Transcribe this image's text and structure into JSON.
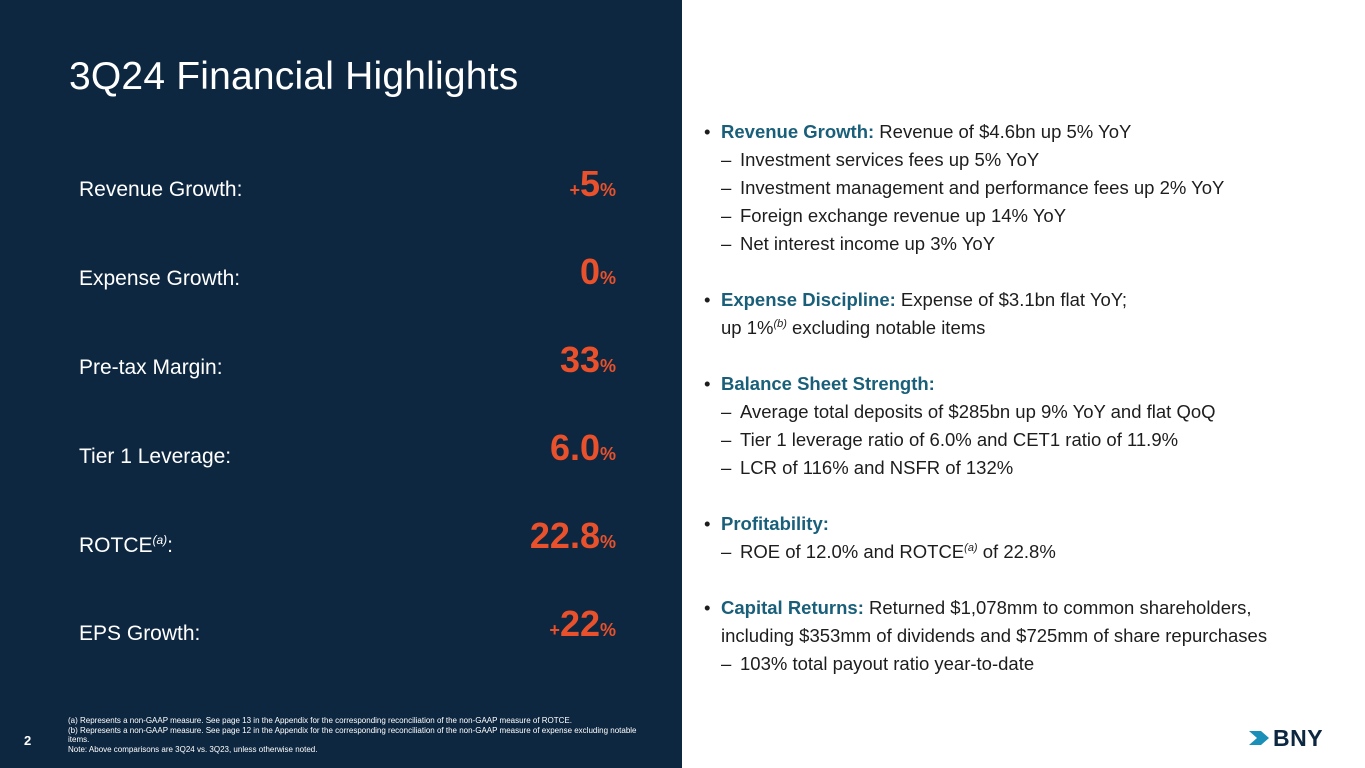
{
  "slide": {
    "title": "3Q24 Financial Highlights",
    "page_number": "2"
  },
  "metrics": [
    {
      "label": "Revenue Growth:",
      "prefix": "+",
      "value": "5",
      "unit": "%"
    },
    {
      "label": "Expense Growth:",
      "prefix": "",
      "value": "0",
      "unit": "%"
    },
    {
      "label": "Pre-tax Margin:",
      "prefix": "",
      "value": "33",
      "unit": "%"
    },
    {
      "label": "Tier 1 Leverage:",
      "prefix": "",
      "value": "6.0",
      "unit": "%"
    },
    {
      "label": "ROTCE",
      "label_sup": "(a)",
      "label_suffix": ":",
      "prefix": "",
      "value": "22.8",
      "unit": "%"
    },
    {
      "label": "EPS Growth:",
      "prefix": "+",
      "value": "22",
      "unit": "%"
    }
  ],
  "highlights": {
    "revenue": {
      "head": "Revenue Growth:",
      "text": " Revenue of $4.6bn up 5% YoY",
      "subs": [
        "Investment services fees up 5% YoY",
        "Investment management and performance fees up 2% YoY",
        "Foreign exchange revenue up 14% YoY",
        "Net interest income up 3% YoY"
      ]
    },
    "expense": {
      "head": "Expense Discipline:",
      "text": " Expense of $3.1bn flat YoY;",
      "cont_pre": "up 1%",
      "cont_sup": "(b)",
      "cont_post": " excluding notable items"
    },
    "balance": {
      "head": "Balance Sheet Strength:",
      "subs": [
        "Average total deposits of $285bn up 9% YoY and flat QoQ",
        "Tier 1 leverage ratio of 6.0% and CET1 ratio of 11.9%",
        "LCR of 116% and NSFR of 132%"
      ]
    },
    "profitability": {
      "head": "Profitability:",
      "sub_pre": "ROE of 12.0% and ROTCE",
      "sub_sup": "(a)",
      "sub_post": " of 22.8%"
    },
    "capital": {
      "head": "Capital Returns:",
      "text": " Returned $1,078mm to common shareholders,",
      "cont": "including $353mm of dividends and $725mm of share repurchases",
      "subs": [
        "103% total payout ratio year-to-date"
      ]
    }
  },
  "footnotes": [
    "(a) Represents a non-GAAP measure. See page 13 in the Appendix for the corresponding reconciliation of the non-GAAP measure of ROTCE.",
    "(b) Represents a non-GAAP measure. See page 12 in the Appendix for the corresponding reconciliation of the non-GAAP measure of expense excluding notable items.",
    "Note: Above comparisons are 3Q24 vs. 3Q23, unless otherwise noted."
  ],
  "logo": {
    "text": "BNY",
    "icon": "bny-arrow-icon"
  },
  "colors": {
    "navy": "#0e2740",
    "accent": "#e8512b",
    "teal": "#1a5f7a"
  }
}
